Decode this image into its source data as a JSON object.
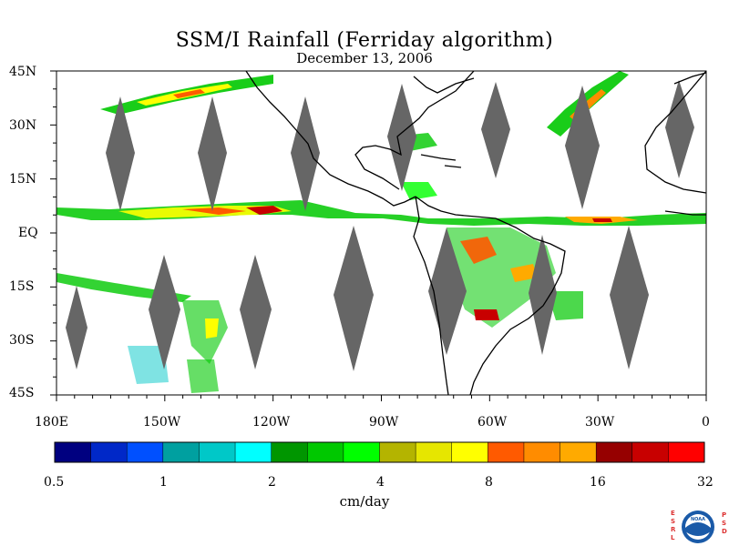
{
  "title": "SSM/I Rainfall (Ferriday algorithm)",
  "subtitle": "December 13, 2006",
  "lat_labels": [
    "45N",
    "30N",
    "15N",
    "EQ",
    "15S",
    "30S",
    "45S"
  ],
  "lon_labels": [
    "180E",
    "150W",
    "120W",
    "90W",
    "60W",
    "30W",
    "0"
  ],
  "colorbar": {
    "unit": "cm/day",
    "tick_labels": [
      "0.5",
      "1",
      "2",
      "4",
      "8",
      "16",
      "32"
    ],
    "colors": [
      "#000080",
      "#0028c8",
      "#0050ff",
      "#00a0a0",
      "#00c8c8",
      "#00ffff",
      "#009600",
      "#00c800",
      "#00ff00",
      "#b4b400",
      "#e6e600",
      "#ffff00",
      "#ff5a00",
      "#ff8c00",
      "#ffaa00",
      "#960000",
      "#c80000",
      "#ff0000"
    ]
  },
  "no_data_color": "#666666",
  "coast_color": "#000000",
  "logo": {
    "left_letters": "ESRL",
    "right_letters": "PSD",
    "badge": "NOAA"
  }
}
